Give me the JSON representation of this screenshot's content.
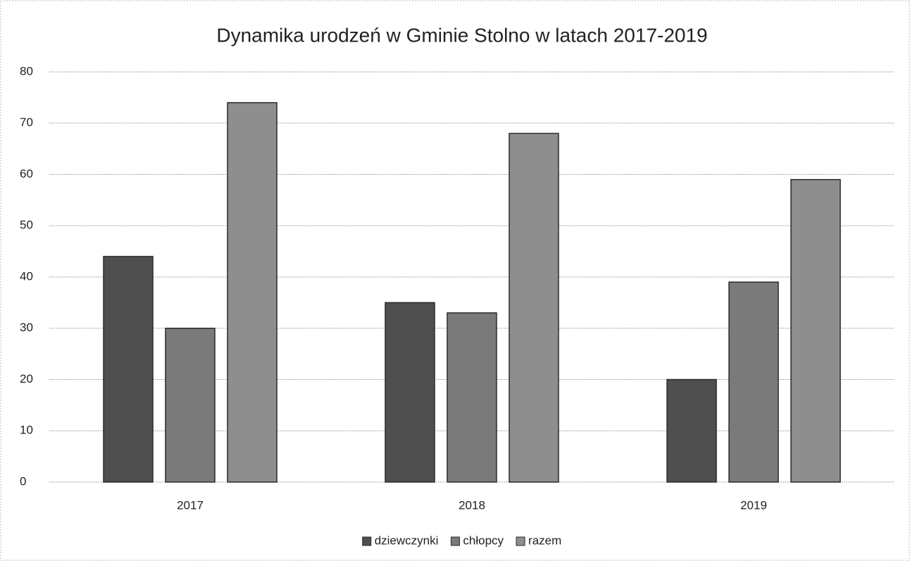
{
  "chart_data": {
    "type": "bar",
    "title": "Dynamika urodzeń w Gminie Stolno w latach 2017-2019",
    "categories": [
      "2017",
      "2018",
      "2019"
    ],
    "series": [
      {
        "name": "dziewczynki",
        "color": "#4f4f4f",
        "values": [
          44,
          35,
          20
        ]
      },
      {
        "name": "chłopcy",
        "color": "#7a7a7a",
        "values": [
          30,
          33,
          39
        ]
      },
      {
        "name": "razem",
        "color": "#8e8e8e",
        "values": [
          74,
          68,
          59
        ]
      }
    ],
    "ylim": [
      0,
      80
    ],
    "yticks": [
      0,
      10,
      20,
      30,
      40,
      50,
      60,
      70,
      80
    ],
    "grid": true,
    "legend": "bottom"
  }
}
